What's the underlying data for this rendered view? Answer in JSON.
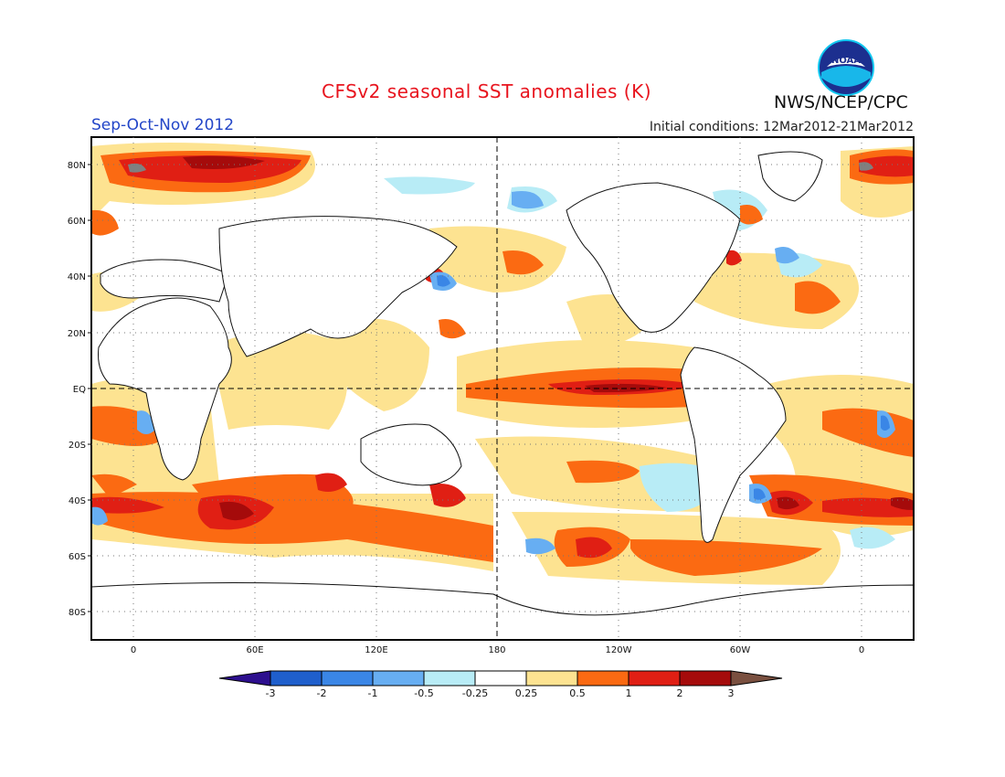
{
  "header": {
    "title": "CFSv2 seasonal SST anomalies (K)",
    "season": "Sep-Oct-Nov 2012",
    "initial_conditions": "Initial conditions: 12Mar2012-21Mar2012",
    "organization": "NWS/NCEP/CPC",
    "logo_text": "NOAA"
  },
  "map": {
    "lat_ticks": [
      "80N",
      "60N",
      "40N",
      "20N",
      "EQ",
      "20S",
      "40S",
      "60S",
      "80S"
    ],
    "lon_ticks": [
      "0",
      "60E",
      "120E",
      "180",
      "120W",
      "60W",
      "0"
    ]
  },
  "legend": {
    "labels": [
      "-3",
      "-2",
      "-1",
      "-0.5",
      "-0.25",
      "0.25",
      "0.5",
      "1",
      "2",
      "3"
    ],
    "colors": [
      "#2d0f8e",
      "#1f5fcc",
      "#3a86e6",
      "#67aef2",
      "#b8ecf6",
      "#ffffff",
      "#fde391",
      "#fb6a12",
      "#e01f14",
      "#a50b0b",
      "#7a5040"
    ]
  },
  "colors": {
    "light_yellow": "#fde391",
    "orange": "#fb6a12",
    "red": "#e01f14",
    "dark_red": "#a50b0b",
    "cyan": "#b8ecf6",
    "light_blue": "#67aef2",
    "blue": "#3a86e6"
  }
}
